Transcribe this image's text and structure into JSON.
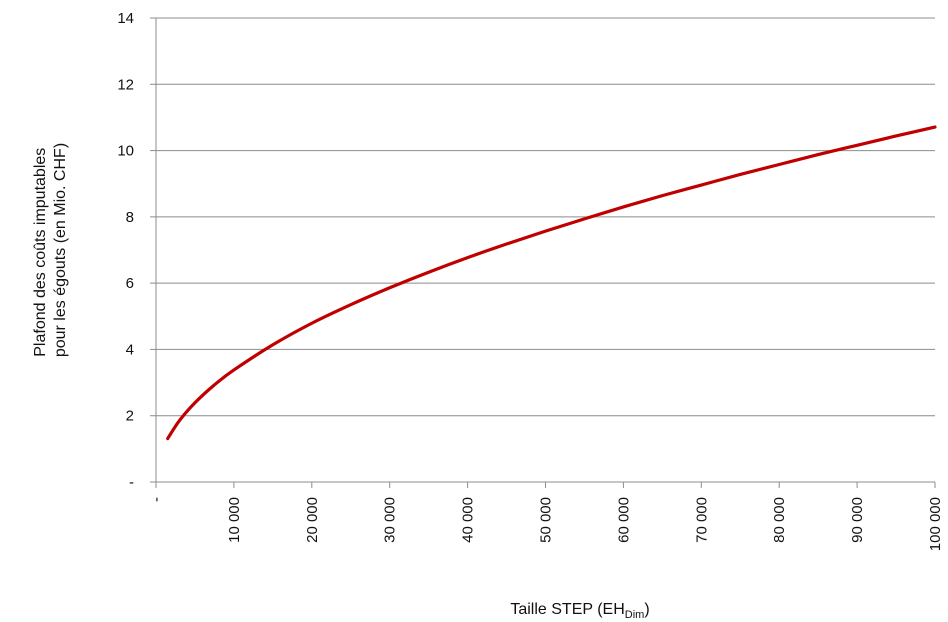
{
  "chart_data": {
    "type": "line",
    "title": "",
    "ylabel_lines": [
      "Plafond des coûts imputables",
      "pour les égouts (en Mio. CHF)"
    ],
    "xlabel": {
      "main": "Taille STEP (EH",
      "subscript": "Dim",
      "suffix": ")"
    },
    "xlim": [
      0,
      100000
    ],
    "ylim": [
      0,
      14
    ],
    "x_ticks": [
      0,
      10000,
      20000,
      30000,
      40000,
      50000,
      60000,
      70000,
      80000,
      90000,
      100000
    ],
    "x_tick_labels": [
      "-",
      "10 000",
      "20 000",
      "30 000",
      "40 000",
      "50 000",
      "60 000",
      "70 000",
      "80 000",
      "90 000",
      "100 000"
    ],
    "y_ticks": [
      0,
      2,
      4,
      6,
      8,
      10,
      12,
      14
    ],
    "y_tick_labels": [
      "-",
      "2",
      "4",
      "6",
      "8",
      "10",
      "12",
      "14"
    ],
    "grid": "horizontal",
    "legend": "none",
    "colors": {
      "line": "#c00000",
      "grid": "#8c8c8c",
      "axis": "#8c8c8c"
    },
    "series": [
      {
        "x": [
          1500,
          3000,
          5000,
          7500,
          10000,
          15000,
          20000,
          25000,
          30000,
          35000,
          40000,
          45000,
          50000,
          55000,
          60000,
          65000,
          70000,
          75000,
          80000,
          85000,
          90000,
          95000,
          100000
        ],
        "values": [
          1.31,
          1.85,
          2.39,
          2.93,
          3.38,
          4.14,
          4.79,
          5.35,
          5.86,
          6.33,
          6.77,
          7.18,
          7.57,
          7.94,
          8.3,
          8.64,
          8.96,
          9.28,
          9.58,
          9.88,
          10.16,
          10.44,
          10.71
        ]
      }
    ]
  }
}
